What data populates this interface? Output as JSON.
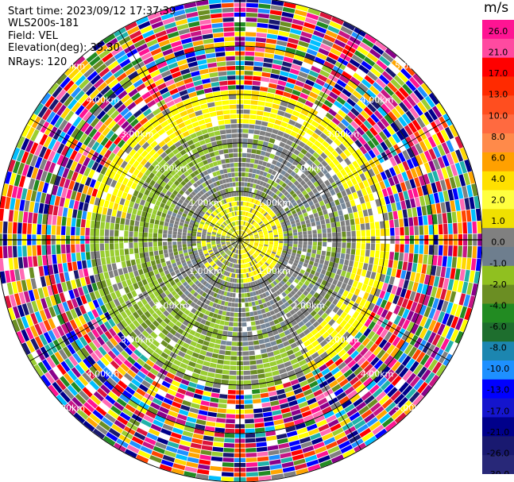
{
  "header": {
    "start_time": "Start time: 2023/09/12 17:37:39",
    "instrument": "WLS200s-181",
    "field": "Field: VEL",
    "elevation": "Elevation(deg): 35.30",
    "nrays": "NRays: 120"
  },
  "chart_data": {
    "type": "heatmap",
    "projection": "polar PPI",
    "field": "VEL",
    "units": "m/s",
    "n_rays": 120,
    "range_ring_labels": [
      "1.00km",
      "2.00km",
      "3.00km",
      "4.00km",
      "5.00km"
    ],
    "range_rings_km": [
      1,
      2,
      3,
      4,
      5
    ],
    "max_range_km": 5.0,
    "colorbar": {
      "title": "m/s",
      "tick_labels": [
        "26.0",
        "21.0",
        "17.0",
        "13.0",
        "10.0",
        "8.0",
        "6.0",
        "4.0",
        "2.0",
        "1.0",
        "0.0",
        "-1.0",
        "-2.0",
        "-4.0",
        "-6.0",
        "-8.0",
        "-10.0",
        "-13.0",
        "-17.0",
        "-21.0",
        "-26.0",
        "-30.0"
      ],
      "colors": [
        "#ff1493",
        "#ff4aa0",
        "#ff0000",
        "#ff2a00",
        "#ff4e1f",
        "#ff6a40",
        "#ff8a4a",
        "#ffa000",
        "#ffe000",
        "#ffff40",
        "#f0e000",
        "#808080",
        "#6e7e8e",
        "#90c020",
        "#6b8e23",
        "#228b22",
        "#1e6e2e",
        "#1c86b0",
        "#1e90ff",
        "#0000ff",
        "#1515cd",
        "#00008b",
        "#191970",
        "#282878"
      ]
    },
    "regions": [
      {
        "range_km": [
          0,
          0.9
        ],
        "dominant": "yellow / grey"
      },
      {
        "range_km": [
          0.9,
          2.4
        ],
        "dominant": "grey / olive green"
      },
      {
        "range_km": [
          2.4,
          3.1
        ],
        "dominant": "yellow / green"
      },
      {
        "range_km": [
          3.1,
          5.0
        ],
        "dominant": "noise (random colors)"
      }
    ]
  }
}
